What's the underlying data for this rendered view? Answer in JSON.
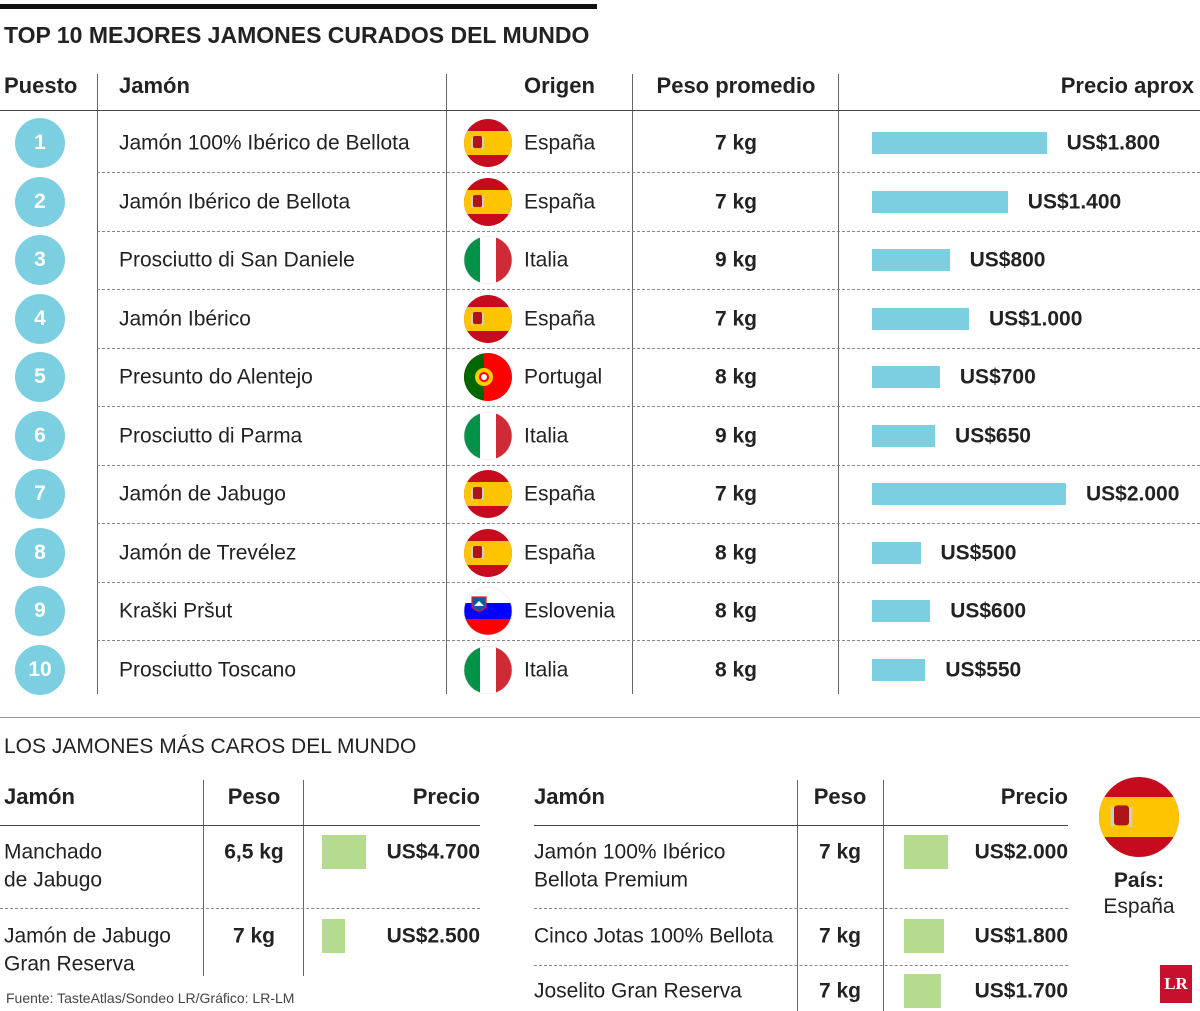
{
  "title": "TOP 10 MEJORES JAMONES CURADOS DEL MUNDO",
  "top10": {
    "columns": [
      "Puesto",
      "Jamón",
      "Origen",
      "Peso promedio",
      "Precio aprox"
    ],
    "rows": [
      {
        "rank": "1",
        "name": "Jamón 100% Ibérico de Bellota",
        "origin": "España",
        "weight": "7 kg",
        "price": {
          "value": 1800,
          "label": "US$1.800"
        }
      },
      {
        "rank": "2",
        "name": "Jamón Ibérico de Bellota",
        "origin": "España",
        "weight": "7 kg",
        "price": {
          "value": 1400,
          "label": "US$1.400"
        }
      },
      {
        "rank": "3",
        "name": "Prosciutto di San Daniele",
        "origin": "Italia",
        "weight": "9 kg",
        "price": {
          "value": 800,
          "label": "US$800"
        }
      },
      {
        "rank": "4",
        "name": "Jamón Ibérico",
        "origin": "España",
        "weight": "7 kg",
        "price": {
          "value": 1000,
          "label": "US$1.000"
        }
      },
      {
        "rank": "5",
        "name": "Presunto do Alentejo",
        "origin": "Portugal",
        "weight": "8 kg",
        "price": {
          "value": 700,
          "label": "US$700"
        }
      },
      {
        "rank": "6",
        "name": "Prosciutto di Parma",
        "origin": "Italia",
        "weight": "9 kg",
        "price": {
          "value": 650,
          "label": "US$650"
        }
      },
      {
        "rank": "7",
        "name": "Jamón de Jabugo",
        "origin": "España",
        "weight": "7 kg",
        "price": {
          "value": 2000,
          "label": "US$2.000"
        }
      },
      {
        "rank": "8",
        "name": "Jamón de Trevélez",
        "origin": "España",
        "weight": "8 kg",
        "price": {
          "value": 500,
          "label": "US$500"
        }
      },
      {
        "rank": "9",
        "name": "Kraški Pršut",
        "origin": "Eslovenia",
        "weight": "8 kg",
        "price": {
          "value": 600,
          "label": "US$600"
        }
      },
      {
        "rank": "10",
        "name": "Prosciutto Toscano",
        "origin": "Italia",
        "weight": "8 kg",
        "price": {
          "value": 550,
          "label": "US$550"
        }
      }
    ]
  },
  "expensive": {
    "title": "LOS JAMONES MÁS CAROS DEL MUNDO",
    "tables": [
      {
        "columns": [
          "Jamón",
          "Peso",
          "Precio"
        ],
        "rows": [
          {
            "name": [
              "Manchado",
              "de Jabugo"
            ],
            "weight": "6,5 kg",
            "price": {
              "value": 4700,
              "label": "US$4.700"
            }
          },
          {
            "name": [
              "Jamón de Jabugo",
              "Gran Reserva"
            ],
            "weight": "7 kg",
            "price": {
              "value": 2500,
              "label": "US$2.500"
            }
          }
        ]
      },
      {
        "columns": [
          "Jamón",
          "Peso",
          "Precio"
        ],
        "rows": [
          {
            "name": [
              "Jamón 100% Ibérico",
              "Bellota Premium"
            ],
            "weight": "7 kg",
            "price": {
              "value": 2000,
              "label": "US$2.000"
            }
          },
          {
            "name": [
              "Cinco Jotas 100% Bellota"
            ],
            "weight": "7 kg",
            "price": {
              "value": 1800,
              "label": "US$1.800"
            }
          },
          {
            "name": [
              "Joselito Gran Reserva"
            ],
            "weight": "7 kg",
            "price": {
              "value": 1700,
              "label": "US$1.700"
            }
          }
        ]
      }
    ],
    "country_label": "País:",
    "country": "España"
  },
  "source": "Fuente: TasteAtlas/Sondeo LR/Gráfico: LR-LM",
  "logo": "LR"
}
